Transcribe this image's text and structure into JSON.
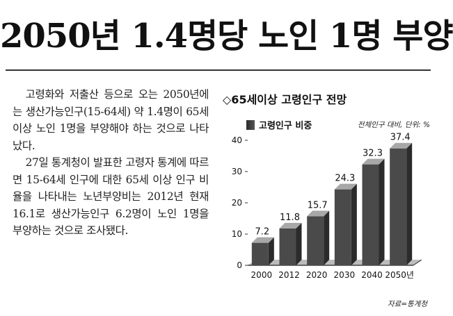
{
  "headline": "2050년 1.4명당 노인 1명 부양",
  "article": {
    "paragraphs": [
      "고령화와 저출산 등으로 오는 2050년에는 생산가능인구(15-64세) 약 1.4명이 65세 이상 노인 1명을 부양해야 하는 것으로 나타났다.",
      "27일 통계청이 발표한 고령자 통계에 따르면 15-64세 인구에 대한 65세 이상 인구 비율을 나타내는 노년부양비는 2012년 현재 16.1로 생산가능인구 6.2명이 노인 1명을 부양하는 것으로 조사됐다."
    ]
  },
  "chart": {
    "title": "◇65세이상 고령인구 전망",
    "legend_label": "고령인구 비중",
    "unit_note": "전체인구 대비, 단위: %",
    "source": "자료=통계청"
  },
  "chart_data": {
    "type": "bar",
    "title": "◇65세이상 고령인구 전망",
    "categories": [
      "2000",
      "2012",
      "2020",
      "2030",
      "2040",
      "2050년"
    ],
    "series": [
      {
        "name": "고령인구 비중",
        "values": [
          7.2,
          11.8,
          15.7,
          24.3,
          32.3,
          37.4
        ]
      }
    ],
    "y_ticks": [
      0,
      10,
      20,
      30,
      40
    ],
    "ylim": [
      0,
      40
    ],
    "grid": false,
    "colors": {
      "bar": "#4a4a4a",
      "bar_top": "#a8a8a8",
      "bar_side": "#2b2b2b"
    }
  }
}
